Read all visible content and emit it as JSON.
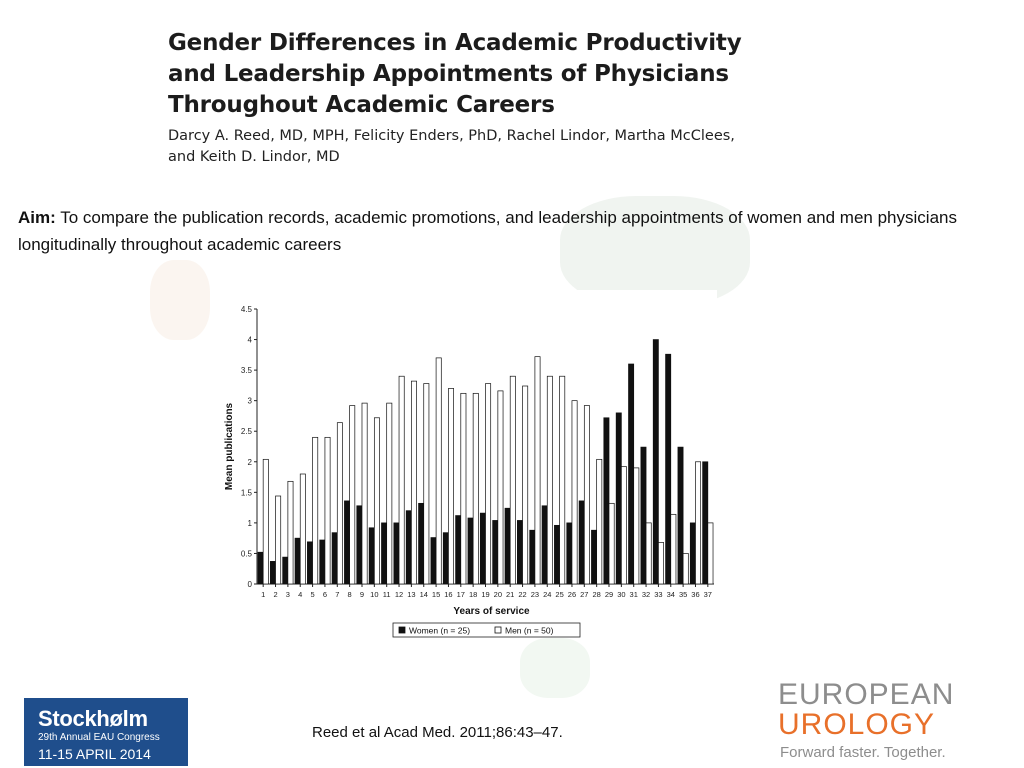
{
  "paper": {
    "title_lines": [
      "Gender Differences in Academic Productivity",
      "and Leadership Appointments of Physicians",
      "Throughout Academic Careers"
    ],
    "author_lines": [
      "Darcy A. Reed, MD, MPH, Felicity Enders, PhD, Rachel Lindor, Martha McClees,",
      "and Keith D. Lindor, MD"
    ]
  },
  "aim": {
    "label": "Aim:",
    "text": " To compare the publication records, academic promotions, and leadership appointments of women and men physicians longitudinally throughout academic careers"
  },
  "chart_data": {
    "type": "bar",
    "xlabel": "Years of service",
    "ylabel": "Mean publications",
    "ylim": [
      0,
      4.5
    ],
    "yticks": [
      "0",
      "0.5",
      "1",
      "1.5",
      "2",
      "2.5",
      "3",
      "3.5",
      "4",
      "4.5"
    ],
    "categories": [
      "1",
      "2",
      "3",
      "4",
      "5",
      "6",
      "7",
      "8",
      "9",
      "10",
      "11",
      "12",
      "13",
      "14",
      "15",
      "16",
      "17",
      "18",
      "19",
      "20",
      "21",
      "22",
      "23",
      "24",
      "25",
      "26",
      "27",
      "28",
      "29",
      "30",
      "31",
      "32",
      "33",
      "34",
      "35",
      "36",
      "37"
    ],
    "series": [
      {
        "name": "Women (n = 25)",
        "color": "#111111",
        "values": [
          0.52,
          0.37,
          0.44,
          0.75,
          0.69,
          0.72,
          0.84,
          1.36,
          1.28,
          0.92,
          1.0,
          1.0,
          1.2,
          1.32,
          0.76,
          0.84,
          1.12,
          1.08,
          1.16,
          1.04,
          1.24,
          1.04,
          0.88,
          1.28,
          0.96,
          1.0,
          1.36,
          0.88,
          2.72,
          2.8,
          3.6,
          2.24,
          4.0,
          3.76,
          2.24,
          1.0,
          2.0
        ]
      },
      {
        "name": "Men (n = 50)",
        "color": "#ffffff",
        "values": [
          2.04,
          1.44,
          1.68,
          1.8,
          2.4,
          2.4,
          2.64,
          2.92,
          2.96,
          2.72,
          2.96,
          3.4,
          3.32,
          3.28,
          3.7,
          3.2,
          3.12,
          3.12,
          3.28,
          3.16,
          3.4,
          3.24,
          3.72,
          3.4,
          3.4,
          3.0,
          2.92,
          2.04,
          1.32,
          1.92,
          1.9,
          1.0,
          0.68,
          1.14,
          0.5,
          2.0,
          1.0
        ]
      }
    ]
  },
  "citation": "Reed et al Acad Med. 2011;86:43–47.",
  "congress_badge": {
    "city": "Stockhølm",
    "subtitle": "29th Annual EAU Congress",
    "dates": "11-15 APRIL 2014",
    "bg_color": "#1f4e8c"
  },
  "journal_logo": {
    "line1": "EUROPEAN",
    "line2": "UROLOGY",
    "tagline": "Forward faster. Together.",
    "line1_color": "#8d8d8d",
    "line2_color": "#e8702a"
  }
}
